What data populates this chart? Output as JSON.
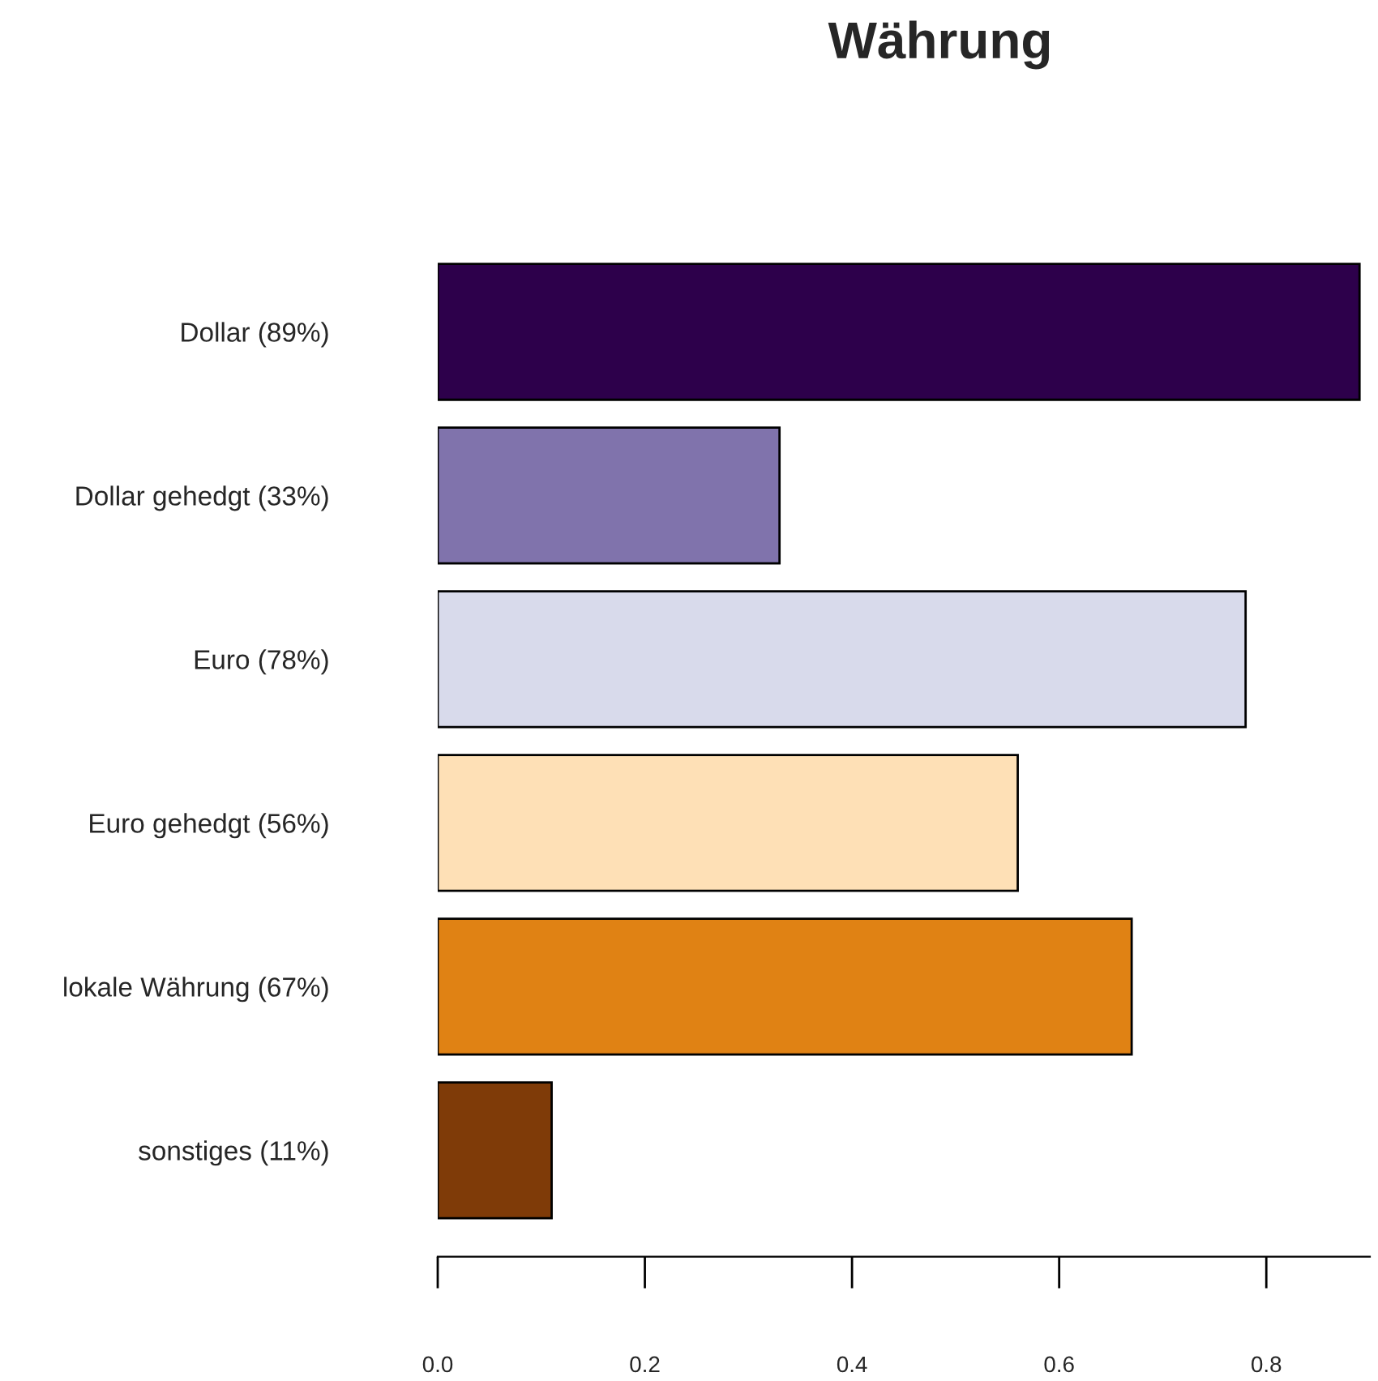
{
  "chart_data": {
    "type": "bar",
    "orientation": "horizontal",
    "title": "Währung",
    "categories": [
      "Dollar (89%)",
      "Dollar gehedgt (33%)",
      "Euro (78%)",
      "Euro gehedgt (56%)",
      "lokale Währung (67%)",
      "sonstiges (11%)"
    ],
    "values": [
      0.89,
      0.33,
      0.78,
      0.56,
      0.67,
      0.11
    ],
    "colors": [
      "#2d004b",
      "#8073ac",
      "#d8daeb",
      "#fee0b6",
      "#e08214",
      "#7f3b08"
    ],
    "xlim": [
      0,
      0.9
    ],
    "xticks": [
      {
        "value": 0,
        "label": "0.0"
      },
      {
        "value": 0.2,
        "label": "0.2"
      },
      {
        "value": 0.4,
        "label": "0.4"
      },
      {
        "value": 0.6,
        "label": "0.6"
      },
      {
        "value": 0.8,
        "label": "0.8"
      }
    ],
    "grid": false,
    "legend": false
  }
}
